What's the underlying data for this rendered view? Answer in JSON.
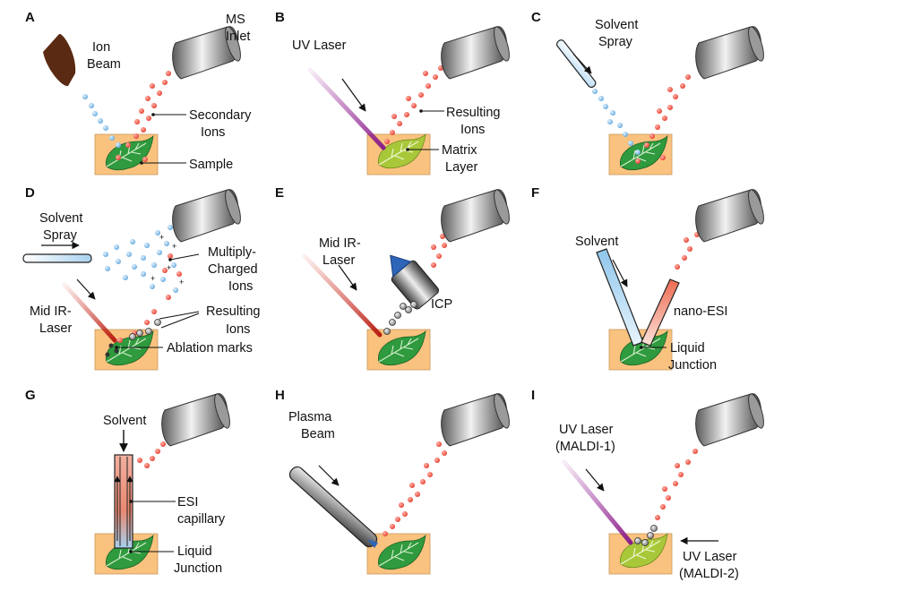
{
  "panels": [
    {
      "id": "A",
      "letter": "A",
      "labels": [
        "Ion",
        "Beam",
        "MS",
        "Inlet",
        "Secondary",
        "Ions",
        "Sample"
      ]
    },
    {
      "id": "B",
      "letter": "B",
      "labels": [
        "UV Laser",
        "Resulting",
        "Ions",
        "Matrix",
        "Layer"
      ]
    },
    {
      "id": "C",
      "letter": "C",
      "labels": [
        "Solvent",
        "Spray"
      ]
    },
    {
      "id": "D",
      "letter": "D",
      "labels": [
        "Solvent",
        "Spray",
        "Multiply-",
        "Charged",
        "Ions",
        "Resulting",
        "Ions",
        "Mid IR-",
        "Laser",
        "Ablation marks"
      ]
    },
    {
      "id": "E",
      "letter": "E",
      "labels": [
        "Mid IR-",
        "Laser",
        "ICP"
      ]
    },
    {
      "id": "F",
      "letter": "F",
      "labels": [
        "Solvent",
        "nano-ESI",
        "Liquid",
        "Junction"
      ]
    },
    {
      "id": "G",
      "letter": "G",
      "labels": [
        "Solvent",
        "ESI",
        "capillary",
        "Liquid",
        "Junction"
      ]
    },
    {
      "id": "H",
      "letter": "H",
      "labels": [
        "Plasma",
        "Beam"
      ]
    },
    {
      "id": "I",
      "letter": "I",
      "labels": [
        "UV Laser",
        "(MALDI-1)",
        "UV Laser",
        "(MALDI-2)"
      ]
    }
  ],
  "colors": {
    "sample": "#f9c27e",
    "leaf": "#2f9a3e",
    "leaf_matrix": "#a8c83a",
    "ion_red": "#e53b2c",
    "ion_blue": "#74b6e6",
    "ion_gray": "#8a8a8a",
    "ion_beam": "#5a2a12",
    "uv_laser": "#9a2a9a",
    "ir_laser": "#c8281e"
  }
}
